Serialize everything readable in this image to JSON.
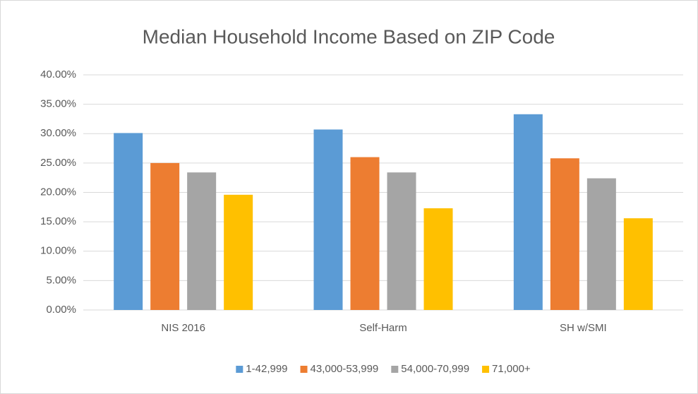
{
  "chart_data": {
    "type": "bar",
    "title": "Median Household Income Based on ZIP Code",
    "categories": [
      "NIS 2016",
      "Self-Harm",
      "SH w/SMI"
    ],
    "series": [
      {
        "name": "1-42,999",
        "color": "#5b9bd5",
        "values": [
          30.1,
          30.7,
          33.3
        ]
      },
      {
        "name": "43,000-53,999",
        "color": "#ed7d31",
        "values": [
          25.0,
          26.0,
          25.8
        ]
      },
      {
        "name": "54,000-70,999",
        "color": "#a5a5a5",
        "values": [
          23.4,
          23.4,
          22.4
        ]
      },
      {
        "name": "71,000+",
        "color": "#ffc000",
        "values": [
          19.6,
          17.3,
          15.6
        ]
      }
    ],
    "ylim": [
      0,
      40
    ],
    "yticks": [
      {
        "value": 0,
        "label": "0.00%"
      },
      {
        "value": 5,
        "label": "5.00%"
      },
      {
        "value": 10,
        "label": "10.00%"
      },
      {
        "value": 15,
        "label": "15.00%"
      },
      {
        "value": 20,
        "label": "20.00%"
      },
      {
        "value": 25,
        "label": "25.00%"
      },
      {
        "value": 30,
        "label": "30.00%"
      },
      {
        "value": 35,
        "label": "35.00%"
      },
      {
        "value": 40,
        "label": "40.00%"
      }
    ],
    "grid": true,
    "legend": "bottom"
  }
}
